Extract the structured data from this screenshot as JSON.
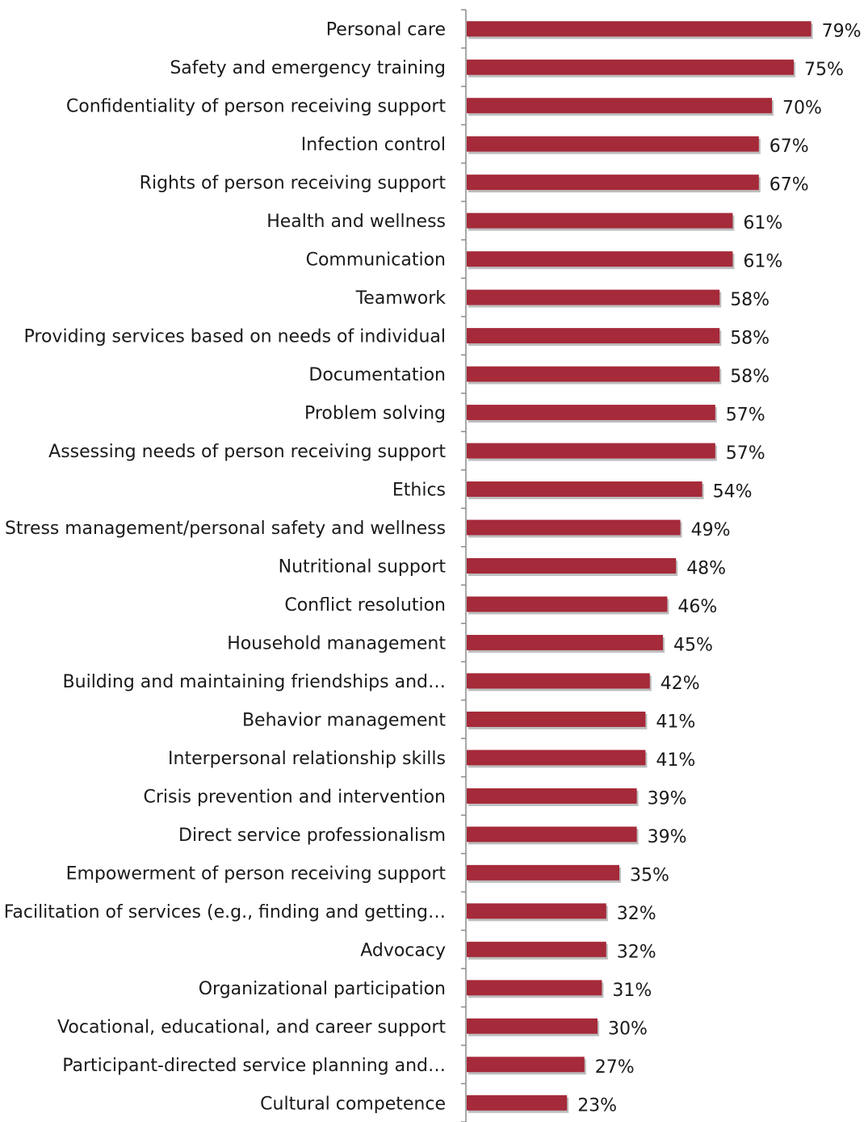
{
  "chart_data": {
    "type": "bar",
    "orientation": "horizontal",
    "categories": [
      "Personal care",
      "Safety and emergency training",
      "Confidentiality of person receiving support",
      "Infection control",
      "Rights of person receiving support",
      "Health and wellness",
      "Communication",
      "Teamwork",
      "Providing services based on needs of individual",
      "Documentation",
      "Problem solving",
      "Assessing needs of person receiving support",
      "Ethics",
      "Stress management/personal safety and wellness",
      "Nutritional support",
      "Conflict resolution",
      "Household management",
      "Building and maintaining friendships and…",
      "Behavior management",
      "Interpersonal relationship skills",
      "Crisis prevention and intervention",
      "Direct service professionalism",
      "Empowerment of person receiving support",
      "Facilitation of services (e.g., finding and getting…",
      "Advocacy",
      "Organizational participation",
      "Vocational, educational, and career support",
      "Participant-directed service planning and…",
      "Cultural competence"
    ],
    "values": [
      79,
      75,
      70,
      67,
      67,
      61,
      61,
      58,
      58,
      58,
      57,
      57,
      54,
      49,
      48,
      46,
      45,
      42,
      41,
      41,
      39,
      39,
      35,
      32,
      32,
      31,
      30,
      27,
      23
    ],
    "value_labels": [
      "79%",
      "75%",
      "70%",
      "67%",
      "67%",
      "61%",
      "61%",
      "58%",
      "58%",
      "58%",
      "57%",
      "57%",
      "54%",
      "49%",
      "48%",
      "46%",
      "45%",
      "42%",
      "41%",
      "41%",
      "39%",
      "39%",
      "35%",
      "32%",
      "32%",
      "31%",
      "30%",
      "27%",
      "23%"
    ],
    "xlim": [
      0,
      100
    ],
    "grid": false,
    "legend": "none",
    "colors": {
      "bar": "#a52a3a",
      "shadow": "#bdbdbd",
      "axis": "#8c8c8c"
    }
  }
}
